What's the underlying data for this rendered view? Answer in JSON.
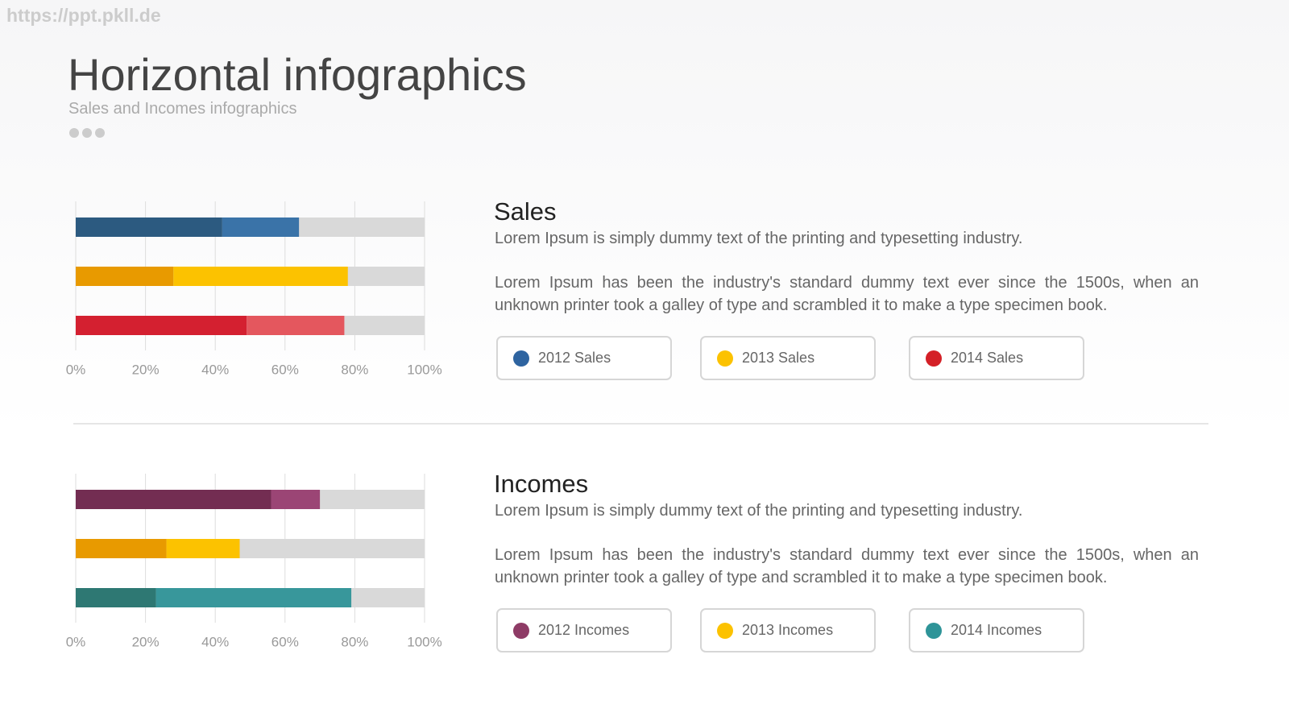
{
  "page": {
    "watermark": "https://ppt.pkll.de",
    "title": "Horizontal infographics",
    "subtitle": "Sales and Incomes infographics"
  },
  "chart_data": [
    {
      "type": "bar",
      "orientation": "horizontal",
      "stacked": true,
      "title": "Sales",
      "description": [
        "Lorem Ipsum is simply dummy text of the printing and typesetting industry.",
        "Lorem Ipsum has been the industry's standard dummy text ever since the 1500s, when an unknown printer took a galley of type and scrambled it to make a type specimen book."
      ],
      "categories": [
        "2012 Sales",
        "2013 Sales",
        "2014 Sales"
      ],
      "category_colors": [
        "#2e64a0",
        "#fcc200",
        "#d42027"
      ],
      "series": [
        {
          "colors": [
            "#2c5a80",
            "#e89a00",
            "#d42030"
          ],
          "values": [
            42,
            28,
            49
          ]
        },
        {
          "colors": [
            "#3a73a8",
            "#fcc200",
            "#e4575e"
          ],
          "values": [
            22,
            50,
            28
          ]
        }
      ],
      "track_color": "#d9d9d9",
      "xlim": [
        0,
        100
      ],
      "xticks": [
        {
          "value": 0,
          "label": "0%"
        },
        {
          "value": 20,
          "label": "20%"
        },
        {
          "value": 40,
          "label": "40%"
        },
        {
          "value": 60,
          "label": "60%"
        },
        {
          "value": 80,
          "label": "80%"
        },
        {
          "value": 100,
          "label": "100%"
        }
      ],
      "grid": true
    },
    {
      "type": "bar",
      "orientation": "horizontal",
      "stacked": true,
      "title": "Incomes",
      "description": [
        "Lorem Ipsum is simply dummy text of the printing and typesetting industry.",
        "Lorem Ipsum has been the industry's standard dummy text ever since the 1500s, when an unknown printer took a galley of type and scrambled it to make a type specimen book."
      ],
      "categories": [
        "2012 Incomes",
        "2013 Incomes",
        "2014 Incomes"
      ],
      "category_colors": [
        "#8e3b66",
        "#fcc200",
        "#2e9498"
      ],
      "series": [
        {
          "colors": [
            "#732d52",
            "#e89a00",
            "#2e7873"
          ],
          "values": [
            56,
            26,
            23
          ]
        },
        {
          "colors": [
            "#9b4575",
            "#fcc200",
            "#38979b"
          ],
          "values": [
            14,
            21,
            56
          ]
        }
      ],
      "track_color": "#d9d9d9",
      "xlim": [
        0,
        100
      ],
      "xticks": [
        {
          "value": 0,
          "label": "0%"
        },
        {
          "value": 20,
          "label": "20%"
        },
        {
          "value": 40,
          "label": "40%"
        },
        {
          "value": 60,
          "label": "60%"
        },
        {
          "value": 80,
          "label": "80%"
        },
        {
          "value": 100,
          "label": "100%"
        }
      ],
      "grid": true
    }
  ]
}
